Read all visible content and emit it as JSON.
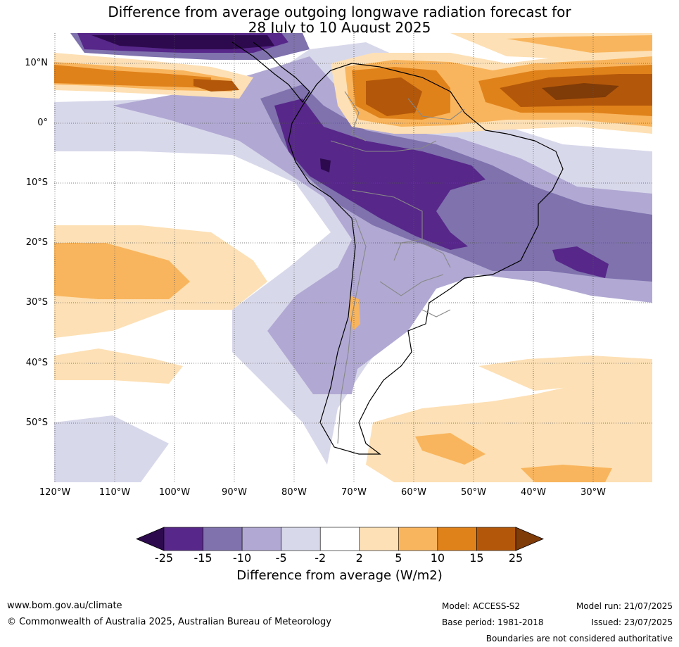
{
  "title_line1": "Difference from average outgoing longwave radiation forecast for",
  "title_line2": "28 July to 10 August 2025",
  "lat_labels": [
    "10°N",
    "0°",
    "10°S",
    "20°S",
    "30°S",
    "40°S",
    "50°S"
  ],
  "lon_labels": [
    "120°W",
    "110°W",
    "100°W",
    "90°W",
    "80°W",
    "70°W",
    "60°W",
    "50°W",
    "40°W",
    "30°W"
  ],
  "colorbar": {
    "ticks": [
      "-25",
      "-15",
      "-10",
      "-5",
      "-2",
      "2",
      "5",
      "10",
      "15",
      "25"
    ],
    "colors": [
      "#2d0a4e",
      "#57278a",
      "#7f72ad",
      "#b1a9d3",
      "#d8d8eb",
      "#ffffff",
      "#fde0b5",
      "#f9b55d",
      "#e0821a",
      "#b3580a",
      "#7f3b08"
    ],
    "label": "Difference from average (W/m2)"
  },
  "footer": {
    "website": "www.bom.gov.au/climate",
    "copyright": "© Commonwealth of Australia 2025, Australian Bureau of Meteorology",
    "model": "Model: ACCESS-S2",
    "base_period": "Base period: 1981-2018",
    "model_run": "Model run: 21/07/2025",
    "issued": "Issued: 23/07/2025",
    "disclaimer": "Boundaries are not considered authoritative"
  }
}
